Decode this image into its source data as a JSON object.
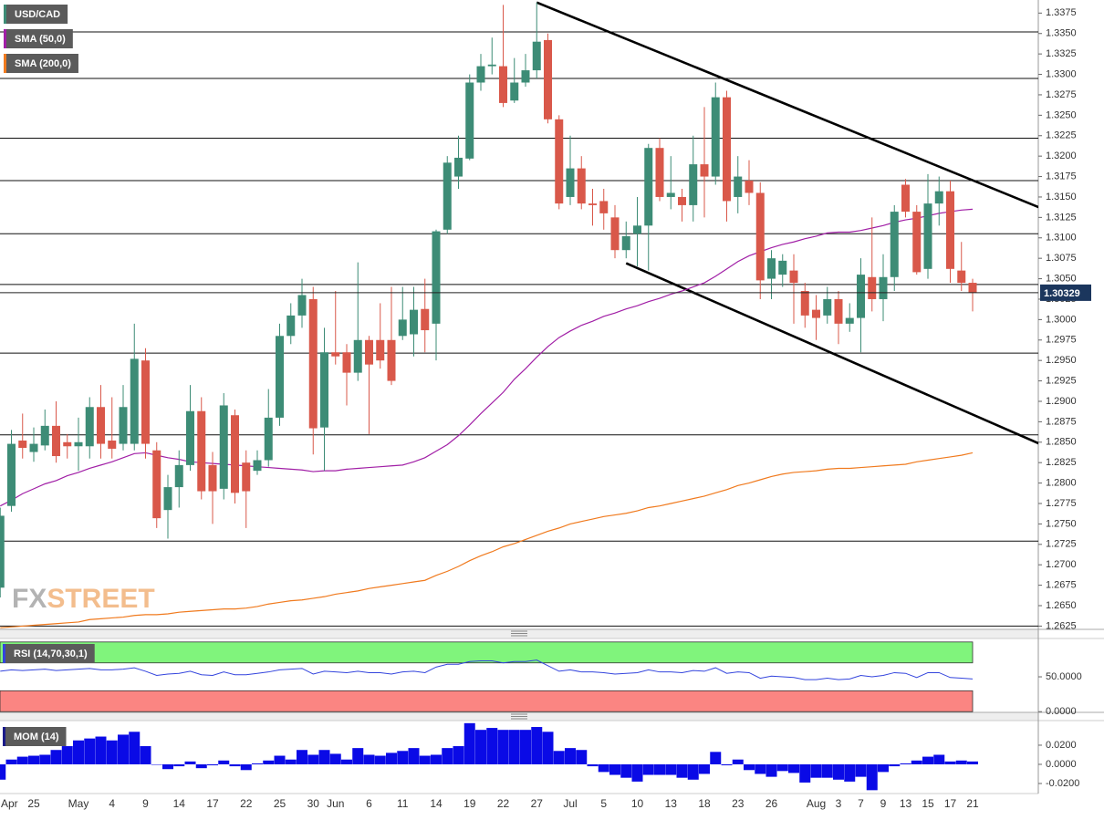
{
  "chart_data": [
    {
      "type": "candlestick",
      "title": "USD/CAD",
      "categories": [
        "Apr",
        null,
        null,
        "25",
        null,
        null,
        null,
        "May",
        null,
        null,
        "4",
        null,
        null,
        "9",
        null,
        null,
        "14",
        null,
        null,
        "17",
        null,
        null,
        "22",
        null,
        null,
        "25",
        null,
        null,
        "30",
        null,
        "Jun",
        null,
        null,
        "6",
        null,
        null,
        "11",
        null,
        null,
        "14",
        null,
        null,
        "19",
        null,
        null,
        "22",
        null,
        null,
        "27",
        null,
        null,
        "Jul",
        null,
        null,
        "5",
        null,
        null,
        "10",
        null,
        null,
        "13",
        null,
        null,
        "18",
        null,
        null,
        "23",
        null,
        null,
        "26",
        null,
        null,
        null,
        "Aug",
        null,
        "3",
        null,
        "7",
        null,
        "9",
        null,
        "13",
        null,
        "15",
        null,
        "17",
        null,
        "21"
      ],
      "open": [
        1.2672,
        1.2772,
        1.2852,
        1.2838,
        1.2846,
        1.287,
        1.285,
        1.2845,
        1.2845,
        1.2893,
        1.2852,
        1.2848,
        1.2848,
        1.295,
        1.284,
        1.2767,
        1.2795,
        1.2822,
        1.2888,
        1.2822,
        1.2793,
        1.2883,
        1.2825,
        1.2815,
        1.2828,
        1.288,
        1.298,
        1.3005,
        1.3025,
        1.2868,
        1.296,
        1.296,
        1.2935,
        1.2975,
        1.2975,
        1.2975,
        1.298,
        1.2982,
        1.3013,
        1.2995,
        1.311,
        1.3175,
        1.3197,
        1.329,
        1.331,
        1.331,
        1.3268,
        1.329,
        1.3305,
        1.3342,
        1.3245,
        1.315,
        1.3185,
        1.3142,
        1.3145,
        1.3125,
        1.3085,
        1.3105,
        1.3115,
        1.321,
        1.315,
        1.315,
        1.314,
        1.319,
        1.3175,
        1.3272,
        1.315,
        1.317,
        1.3155,
        1.305,
        1.3055,
        1.306,
        1.3035,
        1.3012,
        1.3005,
        1.3025,
        1.2995,
        1.3002,
        1.3052,
        1.3025,
        1.3052,
        1.3165,
        1.3132,
        1.3062,
        1.3142,
        1.3157,
        1.306,
        1.3045
      ],
      "high": [
        1.277,
        1.2865,
        1.2885,
        1.2868,
        1.289,
        1.29,
        1.286,
        1.288,
        1.2905,
        1.292,
        1.2905,
        1.292,
        1.2995,
        1.2965,
        1.285,
        1.281,
        1.284,
        1.292,
        1.2905,
        1.2838,
        1.291,
        1.289,
        1.284,
        1.284,
        1.2915,
        1.2995,
        1.302,
        1.305,
        1.304,
        1.299,
        1.3035,
        1.297,
        1.307,
        1.298,
        1.302,
        1.304,
        1.304,
        1.304,
        1.305,
        1.311,
        1.32,
        1.3225,
        1.33,
        1.3325,
        1.3345,
        1.3385,
        1.332,
        1.3325,
        1.3388,
        1.335,
        1.325,
        1.3225,
        1.32,
        1.316,
        1.316,
        1.314,
        1.312,
        1.315,
        1.3215,
        1.3222,
        1.32,
        1.316,
        1.3225,
        1.326,
        1.329,
        1.328,
        1.32,
        1.3195,
        1.3168,
        1.3085,
        1.308,
        1.308,
        1.3045,
        1.303,
        1.304,
        1.3035,
        1.302,
        1.3075,
        1.3125,
        1.308,
        1.314,
        1.3172,
        1.314,
        1.3178,
        1.3175,
        1.317,
        1.3095,
        1.305
      ],
      "low": [
        1.266,
        1.2765,
        1.283,
        1.2826,
        1.284,
        1.2825,
        1.283,
        1.2815,
        1.283,
        1.283,
        1.283,
        1.284,
        1.284,
        1.283,
        1.2745,
        1.2732,
        1.277,
        1.2815,
        1.278,
        1.275,
        1.278,
        1.2775,
        1.2745,
        1.281,
        1.282,
        1.287,
        1.297,
        1.299,
        1.2835,
        1.2815,
        1.2945,
        1.2895,
        1.2925,
        1.286,
        1.294,
        1.292,
        1.2975,
        1.2955,
        1.296,
        1.295,
        1.3105,
        1.316,
        1.3195,
        1.328,
        1.33,
        1.326,
        1.3265,
        1.3285,
        1.3295,
        1.324,
        1.3135,
        1.314,
        1.3135,
        1.3115,
        1.311,
        1.3075,
        1.3075,
        1.3065,
        1.306,
        1.3145,
        1.3135,
        1.312,
        1.312,
        1.3125,
        1.3165,
        1.312,
        1.313,
        1.314,
        1.3025,
        1.3025,
        1.304,
        1.2995,
        1.299,
        1.2975,
        1.2995,
        1.297,
        1.2985,
        1.296,
        1.301,
        1.2998,
        1.3035,
        1.3125,
        1.3055,
        1.305,
        1.3115,
        1.3045,
        1.3035,
        1.301
      ],
      "close": [
        1.276,
        1.2848,
        1.2843,
        1.2848,
        1.287,
        1.2833,
        1.2845,
        1.285,
        1.2893,
        1.2848,
        1.2842,
        1.2893,
        1.2952,
        1.2848,
        1.2757,
        1.2795,
        1.2822,
        1.2888,
        1.279,
        1.279,
        1.2895,
        1.2788,
        1.279,
        1.2828,
        1.288,
        1.298,
        1.3005,
        1.303,
        1.2867,
        1.296,
        1.2955,
        1.2935,
        1.2975,
        1.2945,
        1.295,
        1.2925,
        1.3,
        1.3012,
        1.2987,
        1.3108,
        1.3192,
        1.3198,
        1.329,
        1.331,
        1.3312,
        1.3265,
        1.329,
        1.3305,
        1.334,
        1.3245,
        1.3142,
        1.3185,
        1.3142,
        1.314,
        1.313,
        1.3085,
        1.3102,
        1.3115,
        1.321,
        1.315,
        1.3155,
        1.314,
        1.319,
        1.3175,
        1.3272,
        1.3145,
        1.3175,
        1.3155,
        1.3048,
        1.3075,
        1.3072,
        1.3045,
        1.3005,
        1.3002,
        1.3025,
        1.2995,
        1.3002,
        1.3055,
        1.3025,
        1.3052,
        1.3132,
        1.3132,
        1.3058,
        1.3142,
        1.3157,
        1.3062,
        1.3045,
        1.3033
      ],
      "up_color": "#3d8c76",
      "down_color": "#d9584a",
      "series": [
        {
          "name": "SMA (50,0)",
          "color": "#a11fa6",
          "values": [
            1.2772,
            1.2779,
            1.2787,
            1.2793,
            1.2799,
            1.2803,
            1.2809,
            1.2813,
            1.2818,
            1.2822,
            1.2826,
            1.2831,
            1.2836,
            1.2837,
            1.2834,
            1.2831,
            1.2829,
            1.2826,
            1.2825,
            1.2824,
            1.2823,
            1.2822,
            1.2821,
            1.282,
            1.2819,
            1.2818,
            1.2817,
            1.2816,
            1.2814,
            1.2815,
            1.2815,
            1.2817,
            1.2818,
            1.2819,
            1.282,
            1.2821,
            1.2822,
            1.2826,
            1.2831,
            1.2839,
            1.2847,
            1.2858,
            1.2871,
            1.2885,
            1.2898,
            1.2911,
            1.2927,
            1.294,
            1.2954,
            1.2967,
            1.2978,
            1.2986,
            1.2993,
            1.2998,
            1.3004,
            1.3008,
            1.3013,
            1.3017,
            1.3022,
            1.3026,
            1.3031,
            1.3035,
            1.304,
            1.3045,
            1.3053,
            1.3062,
            1.3071,
            1.3078,
            1.3083,
            1.3088,
            1.3092,
            1.3095,
            1.3099,
            1.3102,
            1.3106,
            1.3107,
            1.3107,
            1.3109,
            1.3112,
            1.3115,
            1.3119,
            1.3122,
            1.3124,
            1.3127,
            1.313,
            1.3132,
            1.3134,
            1.3135
          ]
        },
        {
          "name": "SMA (200,0)",
          "color": "#f07a1e",
          "values": [
            1.2623,
            1.2624,
            1.2625,
            1.2626,
            1.2627,
            1.2628,
            1.2629,
            1.263,
            1.2633,
            1.2634,
            1.2635,
            1.2636,
            1.2638,
            1.2639,
            1.2639,
            1.264,
            1.2642,
            1.2643,
            1.2644,
            1.2645,
            1.2646,
            1.2646,
            1.2647,
            1.2649,
            1.2652,
            1.2654,
            1.2656,
            1.2657,
            1.2659,
            1.2661,
            1.2664,
            1.2666,
            1.2668,
            1.2671,
            1.2673,
            1.2675,
            1.2677,
            1.2679,
            1.2681,
            1.2687,
            1.2692,
            1.2698,
            1.2705,
            1.2711,
            1.2716,
            1.2722,
            1.2726,
            1.2731,
            1.2736,
            1.2741,
            1.2745,
            1.275,
            1.2753,
            1.2756,
            1.2759,
            1.2761,
            1.2763,
            1.2766,
            1.277,
            1.2772,
            1.2775,
            1.2778,
            1.2781,
            1.2784,
            1.2788,
            1.2792,
            1.2797,
            1.28,
            1.2804,
            1.2808,
            1.2811,
            1.2813,
            1.2814,
            1.2815,
            1.2817,
            1.2818,
            1.2818,
            1.2819,
            1.282,
            1.2821,
            1.2822,
            1.2823,
            1.2826,
            1.2828,
            1.283,
            1.2832,
            1.2834,
            1.2837
          ]
        }
      ],
      "levels": [
        1.3352,
        1.3295,
        1.3222,
        1.317,
        1.3105,
        1.3043,
        1.2959,
        1.2859,
        1.2729,
        1.2625
      ],
      "trendlines": [
        {
          "x": [
            48,
            93
          ],
          "y": [
            1.3388,
            1.3137
          ]
        },
        {
          "x": [
            56,
            93
          ],
          "y": [
            1.3069,
            1.2848
          ]
        }
      ],
      "last_price": 1.30329,
      "ylim": [
        1.2621,
        1.3391
      ],
      "yticks": [
        1.3375,
        {
          "value": 1.335,
          "label": "1.3350"
        },
        1.3325,
        {
          "value": 1.33,
          "label": "1.3300"
        },
        1.3275,
        {
          "value": 1.325,
          "label": "1.3250"
        },
        1.3225,
        {
          "value": 1.32,
          "label": "1.3200"
        },
        1.3175,
        {
          "value": 1.315,
          "label": "1.3150"
        },
        1.3125,
        {
          "value": 1.31,
          "label": "1.3100"
        },
        1.3075,
        {
          "value": 1.305,
          "label": "1.3050"
        },
        1.3025,
        {
          "value": 1.3,
          "label": "1.3000"
        },
        1.2975,
        {
          "value": 1.295,
          "label": "1.2950"
        },
        1.2925,
        {
          "value": 1.29,
          "label": "1.2900"
        },
        1.2875,
        {
          "value": 1.285,
          "label": "1.2850"
        },
        1.2825,
        {
          "value": 1.28,
          "label": "1.2800"
        },
        1.2775,
        {
          "value": 1.275,
          "label": "1.2750"
        },
        1.2725,
        {
          "value": 1.27,
          "label": "1.2700"
        },
        1.2675,
        {
          "value": 1.265,
          "label": "1.2650"
        },
        1.2625
      ],
      "watermark": [
        "FX",
        "STREET"
      ]
    },
    {
      "type": "line",
      "series": [
        {
          "name": "RSI (14,70,30,1)",
          "color": "#3344dd",
          "values": [
            58,
            60,
            59,
            60,
            61,
            59,
            60,
            61,
            62,
            60,
            60,
            61,
            63,
            58,
            52,
            54,
            55,
            58,
            53,
            52,
            57,
            53,
            53,
            55,
            57,
            60,
            61,
            62,
            54,
            58,
            57,
            56,
            58,
            56,
            56,
            54,
            57,
            58,
            56,
            64,
            68,
            68,
            72,
            73,
            73,
            70,
            72,
            72,
            74,
            66,
            58,
            60,
            57,
            57,
            56,
            54,
            55,
            56,
            60,
            57,
            57,
            56,
            59,
            58,
            63,
            55,
            57,
            56,
            48,
            51,
            50,
            49,
            46,
            46,
            48,
            46,
            47,
            52,
            50,
            52,
            56,
            55,
            49,
            56,
            56,
            49,
            48,
            47
          ]
        }
      ],
      "bands": [
        {
          "range": [
            70,
            100
          ],
          "color": "#80f47c"
        },
        {
          "range": [
            0,
            30
          ],
          "color": "#fb8582"
        }
      ],
      "ylim": [
        -1,
        105
      ],
      "yticks": [
        {
          "value": 50,
          "label": "50.0000"
        },
        {
          "value": 0,
          "label": "0.0000"
        }
      ]
    },
    {
      "type": "bar",
      "series": [
        {
          "name": "MOM (14)",
          "color": "#0a0ae6",
          "values": [
            -0.016,
            0.005,
            0.008,
            0.009,
            0.01,
            0.015,
            0.019,
            0.025,
            0.027,
            0.029,
            0.025,
            0.031,
            0.034,
            0.019,
            0,
            -0.005,
            -0.002,
            0.003,
            -0.004,
            -0.001,
            0.004,
            -0.002,
            -0.006,
            0.001,
            0.004,
            0.009,
            0.005,
            0.015,
            0.01,
            0.015,
            0.011,
            0.005,
            0.017,
            0.01,
            0.009,
            0.012,
            0.014,
            0.017,
            0.009,
            0.01,
            0.017,
            0.019,
            0.043,
            0.036,
            0.038,
            0.036,
            0.036,
            0.036,
            0.039,
            0.034,
            0.014,
            0.017,
            0.015,
            -0.002,
            -0.008,
            -0.011,
            -0.014,
            -0.018,
            -0.011,
            -0.011,
            -0.011,
            -0.014,
            -0.016,
            -0.01,
            0.013,
            -0.001,
            0.005,
            -0.006,
            -0.01,
            -0.013,
            -0.007,
            -0.009,
            -0.019,
            -0.014,
            -0.014,
            -0.016,
            -0.018,
            -0.013,
            -0.027,
            -0.008,
            -0.002,
            0.001,
            0.004,
            0.008,
            0.01,
            0.003,
            0.004,
            0.003
          ]
        }
      ],
      "ylim": [
        -0.0305,
        0.0457
      ],
      "yticks": [
        {
          "value": 0.02,
          "label": "0.0200"
        },
        {
          "value": 0,
          "label": "0.0000"
        },
        {
          "value": -0.02,
          "label": "-0.0200"
        }
      ]
    }
  ]
}
